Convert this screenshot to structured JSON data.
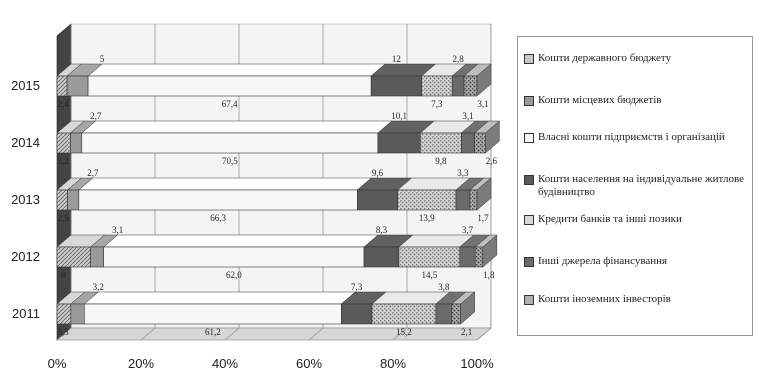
{
  "chart_data": {
    "type": "bar",
    "orientation": "horizontal",
    "stacked": "percent",
    "categories": [
      "2011",
      "2012",
      "2013",
      "2014",
      "2015"
    ],
    "xlim": [
      0,
      100
    ],
    "xticks": [
      "0%",
      "20%",
      "40%",
      "60%",
      "80%",
      "100%"
    ],
    "grid": true,
    "legend_position": "right",
    "series": [
      {
        "name": "Кошти державного бюджету",
        "values": [
          3.3,
          8,
          2.5,
          3.2,
          2.4
        ],
        "labels": [
          "3,3",
          "8",
          "2,5",
          "3,2",
          "2,4"
        ]
      },
      {
        "name": "Кошти місцевих бюджетів",
        "values": [
          3.2,
          3.1,
          2.7,
          2.7,
          5
        ],
        "labels": [
          "3,2",
          "3,1",
          "2,7",
          "2,7",
          "5"
        ]
      },
      {
        "name": "Власні кошти підприємств і організацій",
        "values": [
          61.2,
          62.0,
          66.3,
          70.5,
          67.4
        ],
        "labels": [
          "61,2",
          "62,0",
          "66,3",
          "70,5",
          "67,4"
        ]
      },
      {
        "name": "Кошти населення на індивідуальне житлове будівництво",
        "values": [
          7.3,
          8.3,
          9.6,
          10.1,
          12
        ],
        "labels": [
          "7,3",
          "8,3",
          "9,6",
          "10,1",
          "12"
        ]
      },
      {
        "name": "Кредити банків та інші позики",
        "values": [
          15.2,
          14.5,
          13.9,
          9.8,
          7.3
        ],
        "labels": [
          "15,2",
          "14,5",
          "13,9",
          "9,8",
          "7,3"
        ]
      },
      {
        "name": "Інші джерела фінансування",
        "values": [
          3.8,
          3.7,
          3.3,
          3.1,
          2.8
        ],
        "labels": [
          "3,8",
          "3,7",
          "3,3",
          "3,1",
          "2,8"
        ]
      },
      {
        "name": "Кошти іноземних інвесторів",
        "values": [
          2.1,
          1.8,
          1.7,
          2.6,
          3.1
        ],
        "labels": [
          "2,1",
          "1,8",
          "1,7",
          "2,6",
          "3,1"
        ]
      }
    ]
  },
  "colors": {
    "fills": [
      "#c8c8c8",
      "#9a9a9a",
      "#f7f7f7",
      "#5a5a5a",
      "#d8d8d8",
      "#6a6a6a",
      "#b0b0b0"
    ],
    "wall": "#f4f4f4",
    "floor": "#d6d6d6",
    "grid": "#8a8a8a"
  }
}
